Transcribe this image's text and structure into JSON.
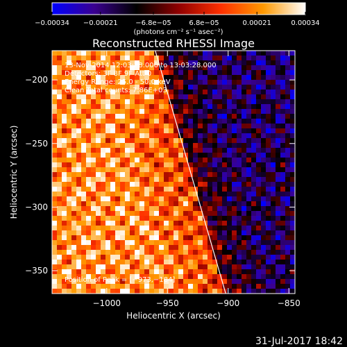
{
  "chart_data": {
    "type": "heatmap",
    "title": "Reconstructed RHESSI Image",
    "xlabel": "Heliocentric X (arcsec)",
    "ylabel": "Heliocentric Y (arcsec)",
    "xlim": [
      -1045,
      -845
    ],
    "ylim": [
      -368,
      -177
    ],
    "x_ticks": [
      {
        "value": -1000,
        "label": "−1000"
      },
      {
        "value": -950,
        "label": "−950"
      },
      {
        "value": -900,
        "label": "−900"
      },
      {
        "value": -850,
        "label": "−850"
      }
    ],
    "y_ticks": [
      {
        "value": -200,
        "label": "−200"
      },
      {
        "value": -250,
        "label": "−250"
      },
      {
        "value": -300,
        "label": "−300"
      },
      {
        "value": -350,
        "label": "−350"
      }
    ],
    "colorbar": {
      "range": [
        -0.00034,
        0.00034
      ],
      "ticks": [
        {
          "value": -0.00034,
          "label": "−0.00034"
        },
        {
          "value": -0.00021,
          "label": "−0.00021"
        },
        {
          "value": -6.8e-05,
          "label": "−6.8e−05"
        },
        {
          "value": 6.8e-05,
          "label": "6.8e−05"
        },
        {
          "value": 0.00021,
          "label": "0.00021"
        },
        {
          "value": 0.00034,
          "label": "0.00034"
        }
      ],
      "unit_label": "(photons cm⁻² s⁻¹ asec⁻²)",
      "colors": [
        "#0000ff",
        "#3a0090",
        "#000000",
        "#900000",
        "#ff3000",
        "#ff9900",
        "#ffffff"
      ]
    },
    "annotations": [
      "13-Nov-2014 12:03:28.000 to 13:03:28.000",
      "Detectors: 3F 8F 9F  Att 0",
      "Energy Range: 25.0 - 50.0 keV",
      "Clean    Total counts: 7.86E+03"
    ],
    "peak_label": "Position of Peak = [−973,−184]",
    "peak_position": [
      -973,
      -184
    ],
    "limb_line": [
      [
        -960,
        -177
      ],
      [
        -902,
        -368
      ]
    ],
    "grid": false
  },
  "footer": {
    "timestamp": "31-Jul-2017 18:42"
  }
}
